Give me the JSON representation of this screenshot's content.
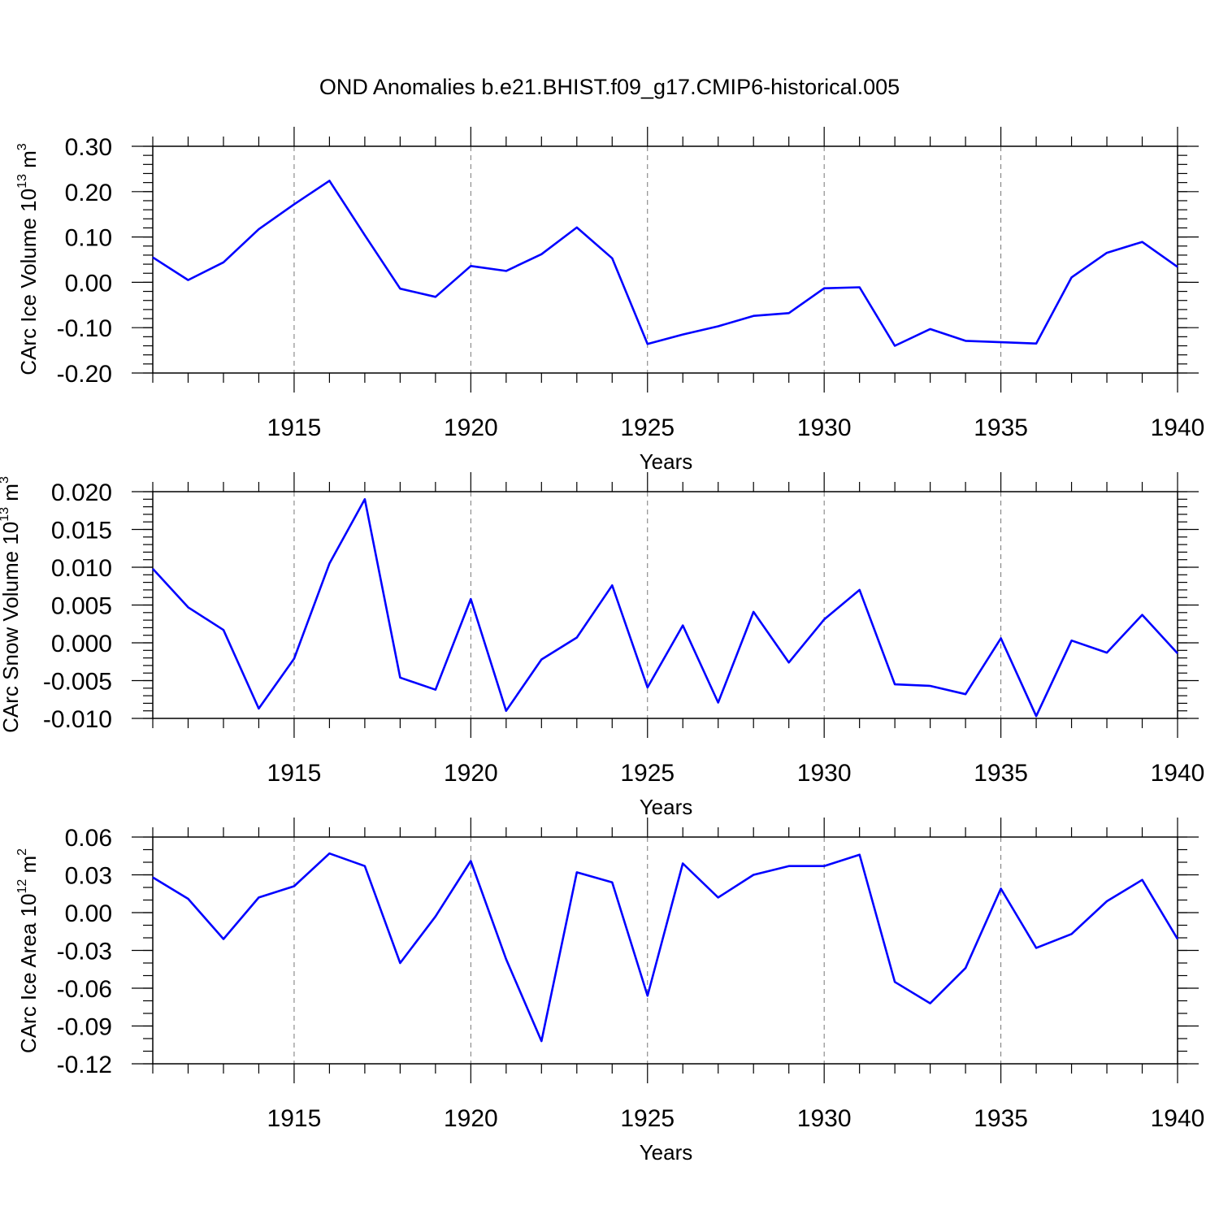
{
  "figure_title": "OND Anomalies b.e21.BHIST.f09_g17.CMIP6-historical.005",
  "chart_data": [
    {
      "type": "line",
      "title": "",
      "xlabel": "Years",
      "ylabel_main": "CArc Ice Volume 10",
      "ylabel_exp": "13",
      "ylabel_unit": " m",
      "ylabel_unit_exp": "3",
      "xlim": [
        1911,
        1940
      ],
      "ylim": [
        -0.2,
        0.3
      ],
      "y_ticks": [
        -0.2,
        -0.1,
        0.0,
        0.1,
        0.2,
        0.3
      ],
      "y_tick_labels": [
        "-0.20",
        "-0.10",
        "0.00",
        "0.10",
        "0.20",
        "0.30"
      ],
      "y_minor_step": 0.02,
      "x_ticks": [
        1915,
        1920,
        1925,
        1930,
        1935,
        1940
      ],
      "x_tick_labels": [
        "1915",
        "1920",
        "1925",
        "1930",
        "1935",
        "1940"
      ],
      "color": "#0000ff",
      "series": [
        {
          "name": "CArc Ice Volume",
          "x": [
            1911,
            1912,
            1913,
            1914,
            1915,
            1916,
            1917,
            1918,
            1919,
            1920,
            1921,
            1922,
            1923,
            1924,
            1925,
            1926,
            1927,
            1928,
            1929,
            1930,
            1931,
            1932,
            1933,
            1934,
            1935,
            1936,
            1937,
            1938,
            1939,
            1940
          ],
          "values": [
            0.055,
            0.005,
            0.044,
            0.117,
            0.172,
            0.224,
            0.104,
            -0.014,
            -0.032,
            0.036,
            0.025,
            0.062,
            0.121,
            0.053,
            -0.136,
            -0.115,
            -0.097,
            -0.074,
            -0.068,
            -0.013,
            -0.011,
            -0.14,
            -0.103,
            -0.129,
            -0.132,
            -0.135,
            0.011,
            0.065,
            0.089,
            0.034
          ]
        }
      ]
    },
    {
      "type": "line",
      "title": "",
      "xlabel": "Years",
      "ylabel_main": "CArc Snow Volume 10",
      "ylabel_exp": "13",
      "ylabel_unit": " m",
      "ylabel_unit_exp": "3",
      "xlim": [
        1911,
        1940
      ],
      "ylim": [
        -0.01,
        0.02
      ],
      "y_ticks": [
        -0.01,
        -0.005,
        0.0,
        0.005,
        0.01,
        0.015,
        0.02
      ],
      "y_tick_labels": [
        "-0.010",
        "-0.005",
        "0.000",
        "0.005",
        "0.010",
        "0.015",
        "0.020"
      ],
      "y_minor_step": 0.001,
      "x_ticks": [
        1915,
        1920,
        1925,
        1930,
        1935,
        1940
      ],
      "x_tick_labels": [
        "1915",
        "1920",
        "1925",
        "1930",
        "1935",
        "1940"
      ],
      "color": "#0000ff",
      "series": [
        {
          "name": "CArc Snow Volume",
          "x": [
            1911,
            1912,
            1913,
            1914,
            1915,
            1916,
            1917,
            1918,
            1919,
            1920,
            1921,
            1922,
            1923,
            1924,
            1925,
            1926,
            1927,
            1928,
            1929,
            1930,
            1931,
            1932,
            1933,
            1934,
            1935,
            1936,
            1937,
            1938,
            1939,
            1940
          ],
          "values": [
            0.0098,
            0.0047,
            0.0017,
            -0.0087,
            -0.0021,
            0.0105,
            0.019,
            -0.0046,
            -0.0062,
            0.0058,
            -0.009,
            -0.0022,
            0.0007,
            0.0076,
            -0.0059,
            0.0023,
            -0.0079,
            0.0041,
            -0.0026,
            0.0031,
            0.007,
            -0.0055,
            -0.0057,
            -0.0068,
            0.0006,
            -0.0097,
            0.0003,
            -0.0013,
            0.0037,
            -0.0014
          ]
        }
      ]
    },
    {
      "type": "line",
      "title": "",
      "xlabel": "Years",
      "ylabel_main": "CArc Ice Area 10",
      "ylabel_exp": "12",
      "ylabel_unit": " m",
      "ylabel_unit_exp": "2",
      "xlim": [
        1911,
        1940
      ],
      "ylim": [
        -0.12,
        0.06
      ],
      "y_ticks": [
        -0.12,
        -0.09,
        -0.06,
        -0.03,
        0.0,
        0.03,
        0.06
      ],
      "y_tick_labels": [
        "-0.12",
        "-0.09",
        "-0.06",
        "-0.03",
        "0.00",
        "0.03",
        "0.06"
      ],
      "y_minor_step": 0.01,
      "x_ticks": [
        1915,
        1920,
        1925,
        1930,
        1935,
        1940
      ],
      "x_tick_labels": [
        "1915",
        "1920",
        "1925",
        "1930",
        "1935",
        "1940"
      ],
      "color": "#0000ff",
      "series": [
        {
          "name": "CArc Ice Area",
          "x": [
            1911,
            1912,
            1913,
            1914,
            1915,
            1916,
            1917,
            1918,
            1919,
            1920,
            1921,
            1922,
            1923,
            1924,
            1925,
            1926,
            1927,
            1928,
            1929,
            1930,
            1931,
            1932,
            1933,
            1934,
            1935,
            1936,
            1937,
            1938,
            1939,
            1940
          ],
          "values": [
            0.028,
            0.011,
            -0.021,
            0.012,
            0.021,
            0.047,
            0.037,
            -0.04,
            -0.003,
            0.041,
            -0.037,
            -0.102,
            0.032,
            0.024,
            -0.066,
            0.039,
            0.012,
            0.03,
            0.037,
            0.037,
            0.046,
            -0.055,
            -0.072,
            -0.044,
            0.019,
            -0.028,
            -0.017,
            0.009,
            0.026,
            -0.021
          ]
        }
      ]
    }
  ]
}
